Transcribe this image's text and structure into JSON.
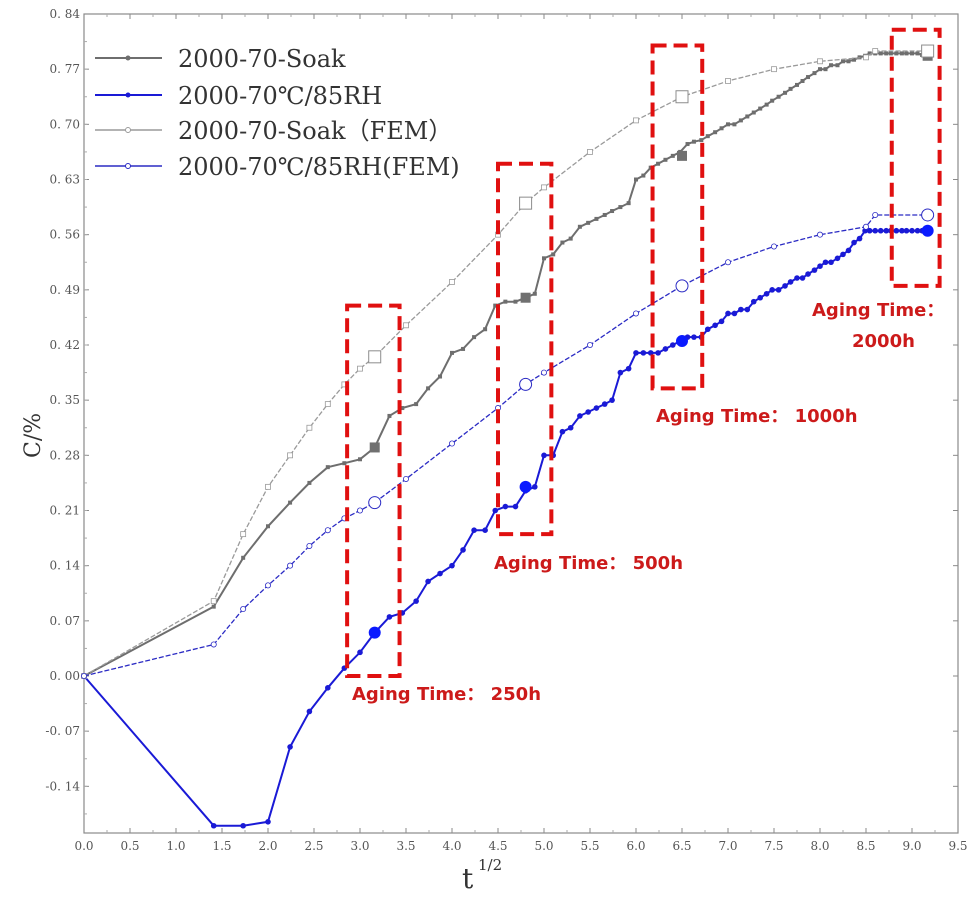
{
  "chart_data": {
    "type": "line",
    "title": "",
    "xlabel": "t^1/2",
    "ylabel": "C/%",
    "xlim": [
      0.0,
      9.5
    ],
    "ylim": [
      -0.2,
      0.84
    ],
    "grid": false,
    "legend_position": "upper left",
    "x_ticks": [
      "0.0",
      "0.5",
      "1.0",
      "1.5",
      "2.0",
      "2.5",
      "3.0",
      "3.5",
      "4.0",
      "4.5",
      "5.0",
      "5.5",
      "6.0",
      "6.5",
      "7.0",
      "7.5",
      "8.0",
      "8.5",
      "9.0",
      "9.5"
    ],
    "y_ticks": [
      "-0.14",
      "-0.07",
      "0.00",
      "0.07",
      "0.14",
      "0.21",
      "0.28",
      "0.35",
      "0.42",
      "0.49",
      "0.56",
      "0.63",
      "0.70",
      "0.77",
      "0.84"
    ],
    "series": [
      {
        "name": "2000-70-Soak",
        "color": "#6e6e6e",
        "marker": "filled-square-small",
        "x": [
          0,
          1.41,
          1.73,
          2.0,
          2.24,
          2.45,
          2.65,
          2.83,
          3.0,
          3.16,
          3.32,
          3.46,
          3.61,
          3.74,
          3.87,
          4.0,
          4.12,
          4.24,
          4.36,
          4.47,
          4.58,
          4.69,
          4.8,
          4.9,
          5.0,
          5.1,
          5.2,
          5.29,
          5.39,
          5.48,
          5.57,
          5.66,
          5.74,
          5.83,
          5.92,
          6.0,
          6.08,
          6.16,
          6.24,
          6.32,
          6.4,
          6.48,
          6.56,
          6.63,
          6.71,
          6.78,
          6.86,
          6.93,
          7.0,
          7.07,
          7.14,
          7.21,
          7.28,
          7.35,
          7.42,
          7.48,
          7.55,
          7.62,
          7.68,
          7.75,
          7.81,
          7.87,
          7.94,
          8.0,
          8.06,
          8.12,
          8.19,
          8.25,
          8.31,
          8.37,
          8.43,
          8.49,
          8.54,
          8.6,
          8.66,
          8.72,
          8.77,
          8.83,
          8.89,
          8.94,
          9.0,
          9.06,
          9.11,
          9.17
        ],
        "y": [
          0,
          0.088,
          0.15,
          0.19,
          0.22,
          0.245,
          0.265,
          0.27,
          0.275,
          0.29,
          0.33,
          0.34,
          0.345,
          0.365,
          0.38,
          0.41,
          0.415,
          0.43,
          0.44,
          0.47,
          0.475,
          0.475,
          0.48,
          0.485,
          0.53,
          0.535,
          0.55,
          0.555,
          0.57,
          0.575,
          0.58,
          0.585,
          0.59,
          0.595,
          0.6,
          0.63,
          0.635,
          0.645,
          0.65,
          0.655,
          0.66,
          0.665,
          0.675,
          0.678,
          0.68,
          0.685,
          0.69,
          0.695,
          0.7,
          0.7,
          0.705,
          0.71,
          0.715,
          0.72,
          0.725,
          0.73,
          0.735,
          0.74,
          0.745,
          0.75,
          0.755,
          0.76,
          0.765,
          0.77,
          0.77,
          0.775,
          0.775,
          0.78,
          0.78,
          0.782,
          0.785,
          0.787,
          0.79,
          0.79,
          0.79,
          0.79,
          0.79,
          0.79,
          0.79,
          0.79,
          0.79,
          0.79,
          0.788,
          0.787
        ],
        "highlighted_points": [
          [
            3.16,
            0.29
          ],
          [
            4.8,
            0.48
          ],
          [
            6.5,
            0.66
          ],
          [
            9.17,
            0.787
          ]
        ]
      },
      {
        "name": "2000-70℃/85RH",
        "color": "#1a1ad6",
        "marker": "filled-circle-small",
        "x": [
          0,
          1.41,
          1.73,
          2.0,
          2.24,
          2.45,
          2.65,
          2.83,
          3.0,
          3.16,
          3.32,
          3.46,
          3.61,
          3.74,
          3.87,
          4.0,
          4.12,
          4.24,
          4.36,
          4.47,
          4.58,
          4.69,
          4.8,
          4.9,
          5.0,
          5.1,
          5.2,
          5.29,
          5.39,
          5.48,
          5.57,
          5.66,
          5.74,
          5.83,
          5.92,
          6.0,
          6.08,
          6.16,
          6.24,
          6.32,
          6.4,
          6.48,
          6.56,
          6.63,
          6.71,
          6.78,
          6.86,
          6.93,
          7.0,
          7.07,
          7.14,
          7.21,
          7.28,
          7.35,
          7.42,
          7.48,
          7.55,
          7.62,
          7.68,
          7.75,
          7.81,
          7.87,
          7.94,
          8.0,
          8.06,
          8.12,
          8.19,
          8.25,
          8.31,
          8.37,
          8.43,
          8.49,
          8.54,
          8.6,
          8.66,
          8.72,
          8.77,
          8.83,
          8.89,
          8.94,
          9.0,
          9.06,
          9.11,
          9.17
        ],
        "y": [
          0,
          -0.19,
          -0.19,
          -0.185,
          -0.09,
          -0.045,
          -0.015,
          0.01,
          0.03,
          0.055,
          0.075,
          0.08,
          0.095,
          0.12,
          0.13,
          0.14,
          0.16,
          0.185,
          0.185,
          0.21,
          0.215,
          0.215,
          0.235,
          0.24,
          0.28,
          0.28,
          0.31,
          0.315,
          0.33,
          0.335,
          0.34,
          0.345,
          0.35,
          0.385,
          0.39,
          0.41,
          0.41,
          0.41,
          0.41,
          0.415,
          0.42,
          0.425,
          0.43,
          0.43,
          0.43,
          0.44,
          0.445,
          0.45,
          0.46,
          0.46,
          0.465,
          0.465,
          0.475,
          0.48,
          0.485,
          0.49,
          0.49,
          0.495,
          0.5,
          0.505,
          0.505,
          0.51,
          0.515,
          0.52,
          0.525,
          0.525,
          0.53,
          0.535,
          0.54,
          0.55,
          0.555,
          0.565,
          0.565,
          0.565,
          0.565,
          0.565,
          0.565,
          0.565,
          0.565,
          0.565,
          0.565,
          0.565,
          0.565,
          0.565
        ],
        "highlighted_points": [
          [
            3.16,
            0.055
          ],
          [
            4.8,
            0.24
          ],
          [
            6.5,
            0.425
          ],
          [
            9.17,
            0.565
          ]
        ]
      },
      {
        "name": "2000-70-Soak（FEM）",
        "color": "#9a9a9a",
        "marker": "open-square-small",
        "x": [
          0,
          1.41,
          1.73,
          2.0,
          2.24,
          2.45,
          2.65,
          2.83,
          3.0,
          3.16,
          3.5,
          4.0,
          4.5,
          4.8,
          5.0,
          5.5,
          6.0,
          6.5,
          7.0,
          7.5,
          8.0,
          8.5,
          8.6,
          9.17
        ],
        "y": [
          0,
          0.095,
          0.18,
          0.24,
          0.28,
          0.315,
          0.345,
          0.37,
          0.39,
          0.405,
          0.445,
          0.5,
          0.56,
          0.6,
          0.62,
          0.665,
          0.705,
          0.735,
          0.755,
          0.77,
          0.78,
          0.785,
          0.793,
          0.793
        ],
        "highlighted_points": [
          [
            3.16,
            0.405
          ],
          [
            4.8,
            0.6
          ],
          [
            6.5,
            0.735
          ],
          [
            9.17,
            0.793
          ]
        ]
      },
      {
        "name": "2000-70℃/85RH(FEM)",
        "color": "#2b2bc4",
        "marker": "open-circle-small",
        "x": [
          0,
          1.41,
          1.73,
          2.0,
          2.24,
          2.45,
          2.65,
          2.83,
          3.0,
          3.16,
          3.5,
          4.0,
          4.5,
          4.8,
          5.0,
          5.5,
          6.0,
          6.5,
          7.0,
          7.5,
          8.0,
          8.5,
          8.6,
          9.17
        ],
        "y": [
          0,
          0.04,
          0.085,
          0.115,
          0.14,
          0.165,
          0.185,
          0.2,
          0.21,
          0.22,
          0.25,
          0.295,
          0.34,
          0.37,
          0.385,
          0.42,
          0.46,
          0.495,
          0.525,
          0.545,
          0.56,
          0.57,
          0.585,
          0.585
        ],
        "highlighted_points": [
          [
            3.16,
            0.22
          ],
          [
            4.8,
            0.37
          ],
          [
            6.5,
            0.495
          ],
          [
            9.17,
            0.585
          ]
        ]
      }
    ],
    "annotations": [
      {
        "text": "Aging Time： 250h",
        "box_x": [
          2.86,
          3.43
        ],
        "box_y": [
          0.0,
          0.47
        ]
      },
      {
        "text": "Aging Time： 500h",
        "box_x": [
          4.5,
          5.08
        ],
        "box_y": [
          0.18,
          0.65
        ]
      },
      {
        "text": "Aging Time： 1000h",
        "box_x": [
          6.18,
          6.72
        ],
        "box_y": [
          0.365,
          0.8
        ]
      },
      {
        "text": "Aging Time：",
        "text2": "2000h",
        "box_x": [
          8.78,
          9.3
        ],
        "box_y": [
          0.495,
          0.82
        ]
      }
    ]
  },
  "legend": [
    {
      "label": "2000-70-Soak"
    },
    {
      "label": "2000-70℃/85RH"
    },
    {
      "label": "2000-70-Soak（FEM）"
    },
    {
      "label": "2000-70℃/85RH(FEM)"
    }
  ],
  "axes": {
    "x_title_base": "t",
    "x_title_sup": "1/2",
    "y_title": "C/%"
  },
  "annotations_text": {
    "a250": "Aging Time： 250h",
    "a500": "Aging Time： 500h",
    "a1000": "Aging Time： 1000h",
    "a2000_line1": "Aging Time：",
    "a2000_line2": "2000h"
  }
}
